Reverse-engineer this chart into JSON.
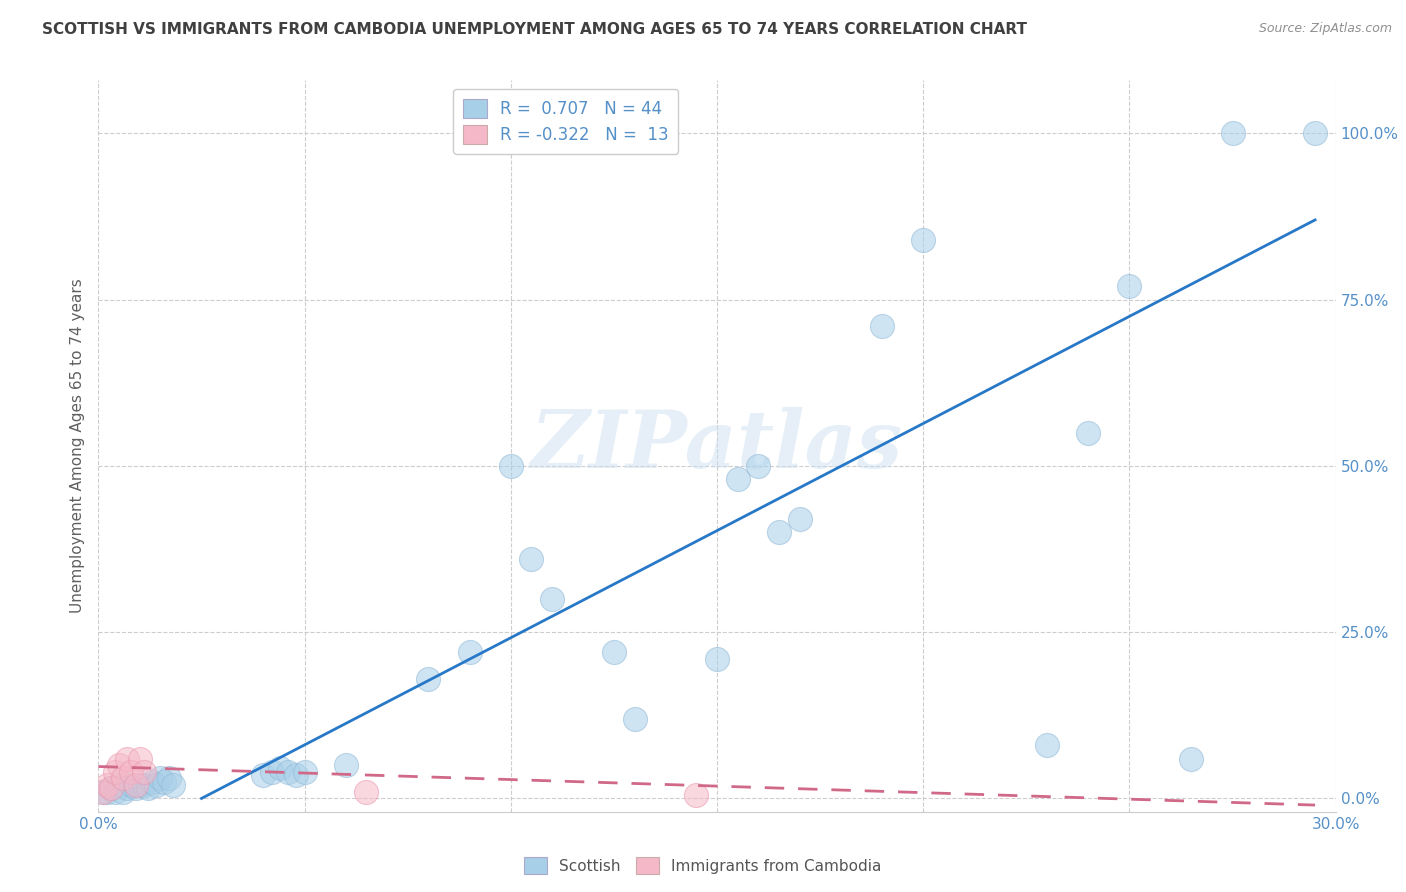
{
  "title": "SCOTTISH VS IMMIGRANTS FROM CAMBODIA UNEMPLOYMENT AMONG AGES 65 TO 74 YEARS CORRELATION CHART",
  "source": "Source: ZipAtlas.com",
  "ylabel": "Unemployment Among Ages 65 to 74 years",
  "xlim": [
    0.0,
    0.3
  ],
  "ylim": [
    -0.02,
    1.08
  ],
  "x_ticks": [
    0.0,
    0.05,
    0.1,
    0.15,
    0.2,
    0.25,
    0.3
  ],
  "y_ticks": [
    0.0,
    0.25,
    0.5,
    0.75,
    1.0
  ],
  "watermark": "ZIPatlas",
  "scatter_blue": [
    [
      0.001,
      0.01
    ],
    [
      0.002,
      0.01
    ],
    [
      0.003,
      0.015
    ],
    [
      0.004,
      0.01
    ],
    [
      0.005,
      0.02
    ],
    [
      0.006,
      0.01
    ],
    [
      0.007,
      0.015
    ],
    [
      0.008,
      0.02
    ],
    [
      0.009,
      0.015
    ],
    [
      0.01,
      0.02
    ],
    [
      0.011,
      0.02
    ],
    [
      0.012,
      0.015
    ],
    [
      0.013,
      0.025
    ],
    [
      0.014,
      0.02
    ],
    [
      0.015,
      0.03
    ],
    [
      0.016,
      0.025
    ],
    [
      0.017,
      0.03
    ],
    [
      0.018,
      0.02
    ],
    [
      0.04,
      0.035
    ],
    [
      0.042,
      0.04
    ],
    [
      0.044,
      0.045
    ],
    [
      0.046,
      0.04
    ],
    [
      0.048,
      0.035
    ],
    [
      0.05,
      0.04
    ],
    [
      0.06,
      0.05
    ],
    [
      0.08,
      0.18
    ],
    [
      0.09,
      0.22
    ],
    [
      0.1,
      0.5
    ],
    [
      0.105,
      0.36
    ],
    [
      0.11,
      0.3
    ],
    [
      0.125,
      0.22
    ],
    [
      0.13,
      0.12
    ],
    [
      0.15,
      0.21
    ],
    [
      0.155,
      0.48
    ],
    [
      0.16,
      0.5
    ],
    [
      0.165,
      0.4
    ],
    [
      0.17,
      0.42
    ],
    [
      0.19,
      0.71
    ],
    [
      0.2,
      0.84
    ],
    [
      0.23,
      0.08
    ],
    [
      0.24,
      0.55
    ],
    [
      0.25,
      0.77
    ],
    [
      0.265,
      0.06
    ],
    [
      0.275,
      1.0
    ],
    [
      0.295,
      1.0
    ]
  ],
  "scatter_pink": [
    [
      0.001,
      0.01
    ],
    [
      0.002,
      0.02
    ],
    [
      0.003,
      0.015
    ],
    [
      0.004,
      0.04
    ],
    [
      0.005,
      0.05
    ],
    [
      0.006,
      0.03
    ],
    [
      0.007,
      0.06
    ],
    [
      0.008,
      0.04
    ],
    [
      0.009,
      0.02
    ],
    [
      0.01,
      0.06
    ],
    [
      0.011,
      0.04
    ],
    [
      0.065,
      0.01
    ],
    [
      0.145,
      0.005
    ]
  ],
  "blue_line_x": [
    0.025,
    0.295
  ],
  "blue_line_y": [
    0.0,
    0.87
  ],
  "pink_line_x": [
    0.0,
    0.295
  ],
  "pink_line_y": [
    0.048,
    -0.01
  ],
  "blue_color": "#a8cfe8",
  "pink_color": "#f5b8c8",
  "blue_line_color": "#2878c8",
  "pink_line_color": "#d06888",
  "background_color": "#ffffff",
  "grid_color": "#c8c8c8",
  "title_color": "#404040",
  "axis_label_color": "#606060",
  "right_axis_color": "#5590c8"
}
